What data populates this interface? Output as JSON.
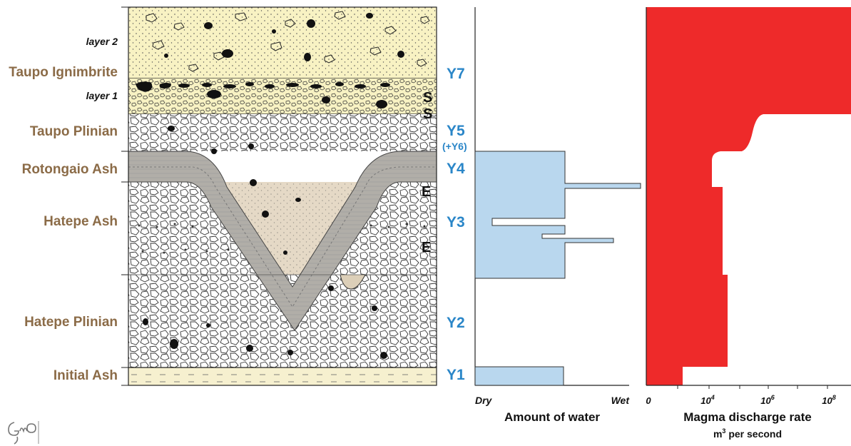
{
  "colors": {
    "unit_label": "#8b6b47",
    "y_label": "#2a86c8",
    "water_bar": "#b9d7ee",
    "discharge_fill": "#ee2a2a",
    "ignimbrite_bg": "#f8f2c3",
    "ash_bg": "#e5d9c6",
    "rotongaio_band": "#b1aea8",
    "initial_ash_bg": "#f6f0cf"
  },
  "stratigraphy": {
    "units": [
      {
        "key": "taupo_ignimbrite",
        "label": "Taupo Ignimbrite"
      },
      {
        "key": "taupo_plinian",
        "label": "Taupo Plinian"
      },
      {
        "key": "rotongaio_ash",
        "label": "Rotongaio Ash"
      },
      {
        "key": "hatepe_ash",
        "label": "Hatepe Ash"
      },
      {
        "key": "hatepe_plinian",
        "label": "Hatepe Plinian"
      },
      {
        "key": "initial_ash",
        "label": "Initial Ash"
      }
    ],
    "sublayers": {
      "layer2": "layer 2",
      "layer1": "layer 1"
    },
    "y_labels": {
      "y7": "Y7",
      "y5": "Y5",
      "y5_note": "(+Y6)",
      "y4": "Y4",
      "y3": "Y3",
      "y2": "Y2",
      "y1": "Y1"
    },
    "contact_marks": {
      "s_upper": "S",
      "s_lower": "S",
      "e_upper": "E",
      "e_lower": "E"
    }
  },
  "water_chart": {
    "axis_left": "Dry",
    "axis_right": "Wet",
    "title": "Amount of water"
  },
  "discharge_chart": {
    "title": "Magma discharge rate",
    "subtitle_base": "m",
    "subtitle_sup": "3",
    "subtitle_rest": " per second",
    "ticks": [
      {
        "base": "0",
        "exp": ""
      },
      {
        "base": "10",
        "exp": "4"
      },
      {
        "base": "10",
        "exp": "6"
      },
      {
        "base": "10",
        "exp": "8"
      }
    ]
  },
  "chart_data": [
    {
      "type": "area",
      "xlabel": "Amount of water",
      "xlim_labels": [
        "Dry",
        "Wet"
      ],
      "scale": "qualitative, 0 = Dry, 1 = Wet",
      "profile": [
        {
          "unit": "Y1",
          "value": 0.6
        },
        {
          "unit": "Y2",
          "value": 0.0
        },
        {
          "unit": "Y3",
          "value": 0.6,
          "spikes": [
            0.9,
            0.12,
            0.85
          ]
        },
        {
          "unit": "Y4",
          "value": 0.6,
          "spikes": [
            1.0
          ]
        },
        {
          "unit": "Y5",
          "value": 0.0
        },
        {
          "unit": "Y7",
          "value": 0.0
        }
      ]
    },
    {
      "type": "area",
      "xlabel": "Magma discharge rate",
      "units": "m3 per second",
      "scale": "log",
      "x_ticks": [
        "0",
        "10^4",
        "10^6",
        "10^8"
      ],
      "profile": [
        {
          "unit": "Y1",
          "value": "about 10^3"
        },
        {
          "unit": "Y2",
          "value": "about 10^4.5"
        },
        {
          "unit": "Y3",
          "value": "about 10^4.3"
        },
        {
          "unit": "Y4",
          "value": "about 10^4"
        },
        {
          "unit": "Y5",
          "value": "about 10^6"
        },
        {
          "unit": "Y7",
          "value": "about 10^9"
        }
      ]
    }
  ]
}
